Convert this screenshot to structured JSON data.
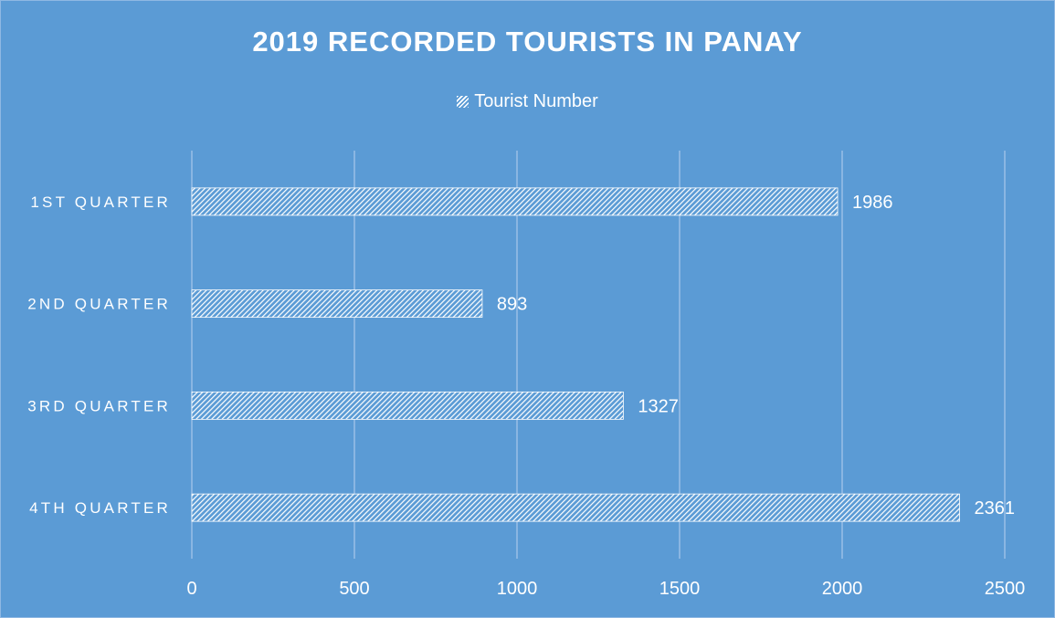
{
  "chart_data": {
    "type": "bar",
    "orientation": "horizontal",
    "title": "2019 RECORDED TOURISTS IN PANAY",
    "categories": [
      "1ST QUARTER",
      "2ND QUARTER",
      "3RD QUARTER",
      "4TH QUARTER"
    ],
    "series": [
      {
        "name": "Tourist Number",
        "values": [
          1986,
          893,
          1327,
          2361
        ]
      }
    ],
    "data_labels": [
      "1986",
      "893",
      "1327",
      "2361"
    ],
    "x_ticks": [
      "0",
      "500",
      "1000",
      "1500",
      "2000",
      "2500"
    ],
    "xlim": [
      0,
      2500
    ],
    "xlabel": "",
    "ylabel": "",
    "grid": "vertical",
    "legend": "top-center",
    "colors": {
      "background": "#5b9bd5",
      "bar_pattern": "#ffffff",
      "text": "#ffffff",
      "grid": "#a9c9ea"
    }
  }
}
